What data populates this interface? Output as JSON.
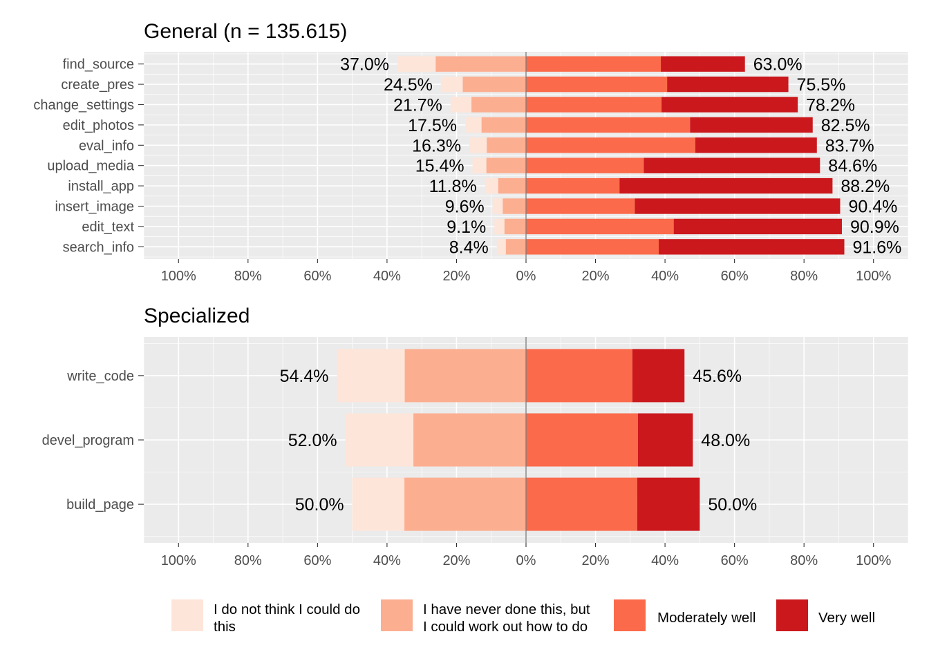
{
  "colors": {
    "cannot": "#fee5d9",
    "never": "#fcae91",
    "moderate": "#fb6a4a",
    "very": "#cb181d"
  },
  "legend": [
    {
      "key": "cannot",
      "lines": [
        "I do not think I could do",
        "this"
      ]
    },
    {
      "key": "never",
      "lines": [
        "I have never done this, but",
        "I could work out how to do"
      ]
    },
    {
      "key": "moderate",
      "lines": [
        "Moderately well"
      ]
    },
    {
      "key": "very",
      "lines": [
        "Very well"
      ]
    }
  ],
  "chart_data": [
    {
      "type": "bar",
      "orientation": "horizontal-diverging",
      "title": "General (n = 135.615)",
      "xlim": [
        -110,
        110
      ],
      "x_ticks": [
        "100%",
        "80%",
        "60%",
        "40%",
        "20%",
        "0%",
        "20%",
        "40%",
        "60%",
        "80%",
        "100%"
      ],
      "categories": [
        "find_source",
        "create_pres",
        "change_settings",
        "edit_photos",
        "eval_info",
        "upload_media",
        "install_app",
        "insert_image",
        "edit_text",
        "search_info"
      ],
      "series": [
        {
          "name": "I do not think I could do this",
          "key": "cannot",
          "values": [
            11.0,
            6.3,
            6.0,
            4.7,
            5.0,
            4.0,
            3.8,
            2.9,
            2.9,
            2.6
          ]
        },
        {
          "name": "I have never done this, but I could work out how to do",
          "key": "never",
          "values": [
            26.0,
            18.2,
            15.7,
            12.8,
            11.3,
            11.4,
            8.0,
            6.7,
            6.2,
            5.8
          ]
        },
        {
          "name": "Moderately well",
          "key": "moderate",
          "values": [
            38.8,
            40.6,
            39.0,
            47.2,
            48.7,
            33.9,
            26.9,
            31.3,
            42.5,
            38.2
          ]
        },
        {
          "name": "Very well",
          "key": "very",
          "values": [
            24.2,
            34.9,
            39.2,
            35.3,
            35.0,
            50.7,
            61.3,
            59.1,
            48.4,
            53.4
          ]
        }
      ],
      "left_labels": [
        "37.0%",
        "24.5%",
        "21.7%",
        "17.5%",
        "16.3%",
        "15.4%",
        "11.8%",
        "9.6%",
        "9.1%",
        "8.4%"
      ],
      "right_labels": [
        "63.0%",
        "75.5%",
        "78.2%",
        "82.5%",
        "83.7%",
        "84.6%",
        "88.2%",
        "90.4%",
        "90.9%",
        "91.6%"
      ]
    },
    {
      "type": "bar",
      "orientation": "horizontal-diverging",
      "title": "Specialized",
      "xlim": [
        -110,
        110
      ],
      "x_ticks": [
        "100%",
        "80%",
        "60%",
        "40%",
        "20%",
        "0%",
        "20%",
        "40%",
        "60%",
        "80%",
        "100%"
      ],
      "categories": [
        "write_code",
        "devel_program",
        "build_page"
      ],
      "series": [
        {
          "name": "I do not think I could do this",
          "key": "cannot",
          "values": [
            19.5,
            19.6,
            15.0
          ]
        },
        {
          "name": "I have never done this, but I could work out how to do",
          "key": "never",
          "values": [
            34.9,
            32.4,
            35.0
          ]
        },
        {
          "name": "Moderately well",
          "key": "moderate",
          "values": [
            30.6,
            32.2,
            32.0
          ]
        },
        {
          "name": "Very well",
          "key": "very",
          "values": [
            15.0,
            15.8,
            18.0
          ]
        }
      ],
      "left_labels": [
        "54.4%",
        "52.0%",
        "50.0%"
      ],
      "right_labels": [
        "45.6%",
        "48.0%",
        "50.0%"
      ]
    }
  ]
}
